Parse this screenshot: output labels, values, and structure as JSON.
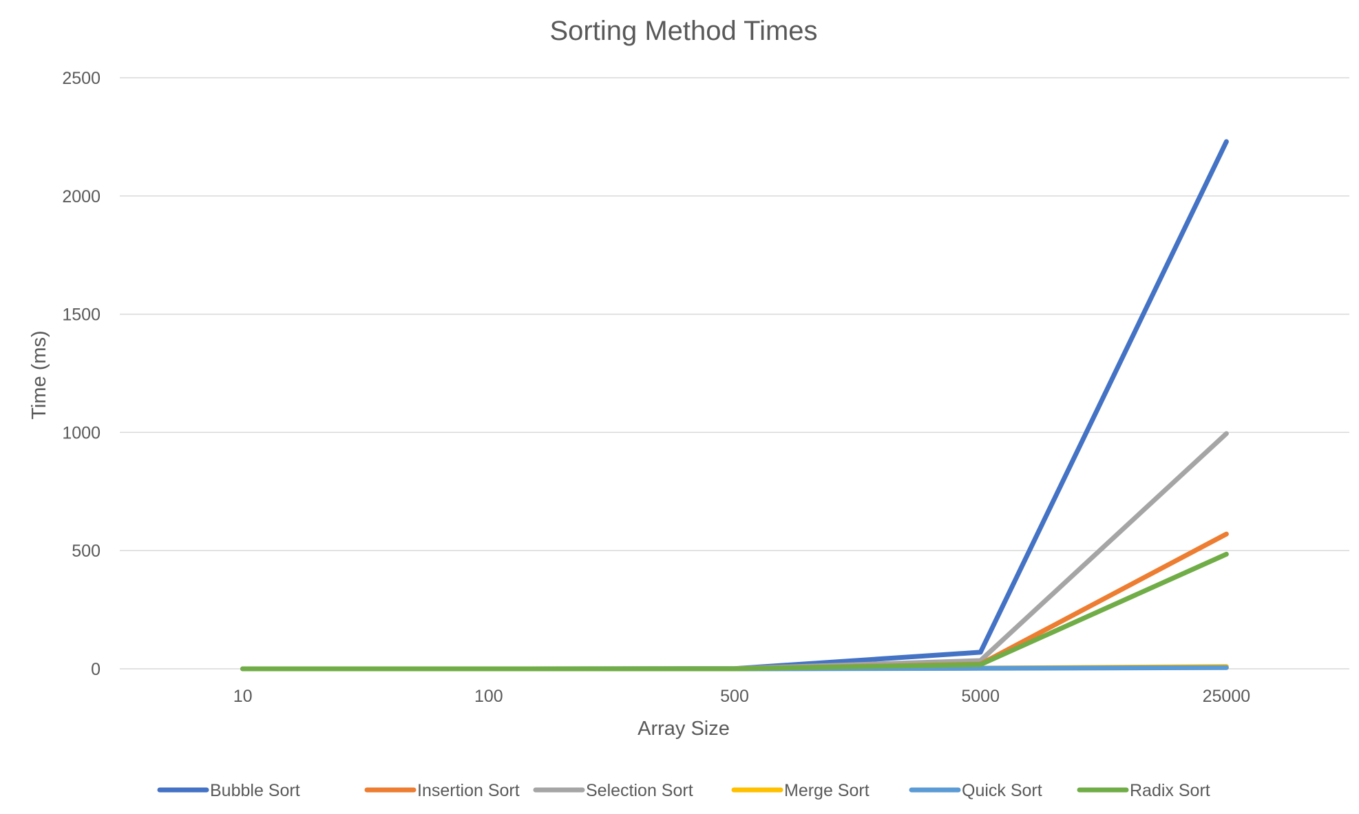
{
  "chart_data": {
    "type": "line",
    "title": "Sorting Method Times",
    "xlabel": "Array Size",
    "ylabel": "Time (ms)",
    "categories": [
      "10",
      "100",
      "500",
      "5000",
      "25000"
    ],
    "ylim": [
      0,
      2500
    ],
    "yticks": [
      0,
      500,
      1000,
      1500,
      2000,
      2500
    ],
    "grid": true,
    "legend_position": "bottom",
    "series": [
      {
        "name": "Bubble Sort",
        "color": "#4472C4",
        "values": [
          0,
          0,
          1,
          70,
          2230
        ]
      },
      {
        "name": "Insertion Sort",
        "color": "#ED7D31",
        "values": [
          0,
          0,
          0,
          20,
          570
        ]
      },
      {
        "name": "Selection Sort",
        "color": "#A5A5A5",
        "values": [
          0,
          0,
          1,
          35,
          995
        ]
      },
      {
        "name": "Merge Sort",
        "color": "#FFC000",
        "values": [
          0,
          0,
          0,
          3,
          10
        ]
      },
      {
        "name": "Quick Sort",
        "color": "#5B9BD5",
        "values": [
          0,
          0,
          0,
          2,
          5
        ]
      },
      {
        "name": "Radix Sort",
        "color": "#70AD47",
        "values": [
          0,
          0,
          0,
          18,
          485
        ]
      }
    ]
  }
}
